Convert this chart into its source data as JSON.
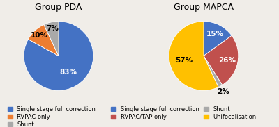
{
  "pda": {
    "title": "Group PDA",
    "values": [
      83,
      10,
      7
    ],
    "colors": [
      "#4472C4",
      "#ED7D31",
      "#A9A9A9"
    ],
    "labels": [
      "83%",
      "10%",
      "7%"
    ],
    "startangle": 90,
    "legend_labels": [
      "Single stage full correction",
      "RVPAC only",
      "Shunt"
    ]
  },
  "mapca": {
    "title": "Group MAPCA",
    "values": [
      15,
      26,
      2,
      57
    ],
    "colors": [
      "#4472C4",
      "#C0504D",
      "#A9A9A9",
      "#FFC000"
    ],
    "labels": [
      "15%",
      "26%",
      "2%",
      "57%"
    ],
    "startangle": 90,
    "legend_labels": [
      "Single stage full correction",
      "RVPAC/TAP only",
      "Shunt",
      "Unifocalisation"
    ]
  },
  "background_color": "#f0ede8",
  "title_fontsize": 9,
  "label_fontsize": 7.5,
  "legend_fontsize": 6.0
}
